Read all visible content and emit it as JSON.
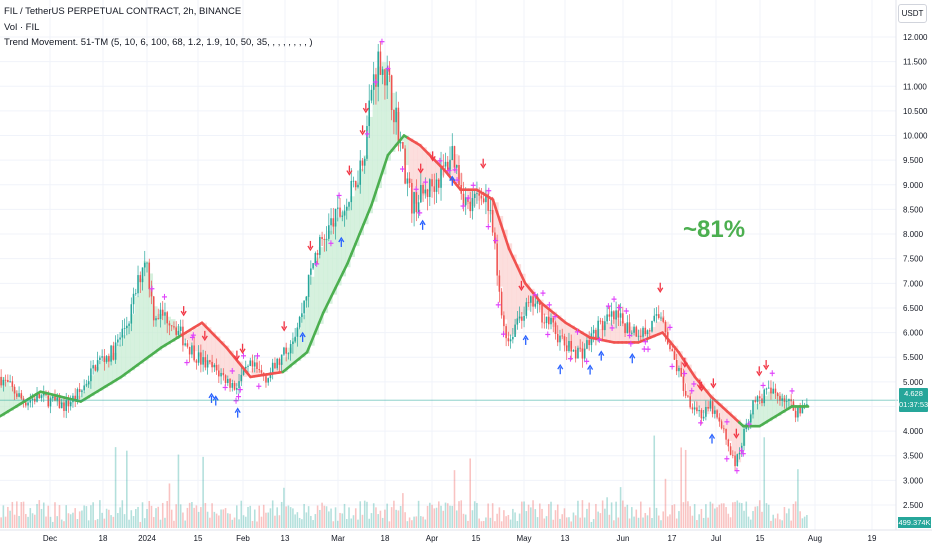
{
  "header": {
    "symbol_line": "FIL / TetherUS PERPETUAL CONTRACT, 2h, BINANCE",
    "volume_line": "Vol · FIL",
    "indicator_line": "Trend Movement. 51-TM (5, 10, 6, 100, 68, 1.2, 1.9, 10, 50, 35, , , , , , , , )"
  },
  "currency_label": "USDT",
  "price_tag": {
    "price": "4.628",
    "countdown": "01:37:53"
  },
  "volume_tag": "499.374K",
  "annotation": "~81%",
  "colors": {
    "up": "#26a69a",
    "down": "#ef5350",
    "trend_up": "#4caf50",
    "trend_down": "#f0524f",
    "fill_up": "#c8ecd3",
    "fill_down": "#fbd3d2",
    "arrow_up": "#2962ff",
    "arrow_down": "#f23645",
    "signal": "#e040fb",
    "annotation": "#4caf50",
    "price_line": "#26a69a"
  },
  "chart_data": {
    "type": "candlestick",
    "title": "FIL / TetherUS PERPETUAL CONTRACT, 2h, BINANCE",
    "ylim": [
      2.25,
      12.1
    ],
    "y_ticks": [
      "12.000",
      "11.500",
      "11.000",
      "10.500",
      "10.000",
      "9.500",
      "9.000",
      "8.500",
      "8.000",
      "7.500",
      "7.000",
      "6.500",
      "6.000",
      "5.500",
      "5.000",
      "4.500",
      "4.000",
      "3.500",
      "3.000",
      "2.500"
    ],
    "x_ticks": [
      "Dec",
      "18",
      "2024",
      "15",
      "Feb",
      "13",
      "Mar",
      "18",
      "Apr",
      "15",
      "May",
      "13",
      "Jun",
      "17",
      "Jul",
      "15",
      "Aug",
      "19"
    ],
    "last_price": 4.628,
    "price_path": [
      [
        0,
        5.1
      ],
      [
        0.03,
        4.6
      ],
      [
        0.05,
        4.7
      ],
      [
        0.08,
        4.5
      ],
      [
        0.1,
        4.8
      ],
      [
        0.12,
        5.4
      ],
      [
        0.14,
        5.6
      ],
      [
        0.16,
        6.3
      ],
      [
        0.18,
        7.6
      ],
      [
        0.19,
        6.4
      ],
      [
        0.21,
        6.3
      ],
      [
        0.23,
        5.8
      ],
      [
        0.25,
        5.4
      ],
      [
        0.27,
        5.2
      ],
      [
        0.29,
        4.9
      ],
      [
        0.31,
        5.3
      ],
      [
        0.33,
        5.1
      ],
      [
        0.35,
        5.5
      ],
      [
        0.37,
        6.2
      ],
      [
        0.39,
        7.6
      ],
      [
        0.41,
        8.2
      ],
      [
        0.43,
        8.6
      ],
      [
        0.45,
        9.6
      ],
      [
        0.46,
        11.0
      ],
      [
        0.47,
        11.6
      ],
      [
        0.48,
        11.1
      ],
      [
        0.49,
        10.4
      ],
      [
        0.5,
        9.4
      ],
      [
        0.51,
        8.6
      ],
      [
        0.53,
        8.9
      ],
      [
        0.55,
        9.3
      ],
      [
        0.56,
        9.7
      ],
      [
        0.57,
        9.0
      ],
      [
        0.58,
        8.5
      ],
      [
        0.6,
        8.9
      ],
      [
        0.61,
        8.0
      ],
      [
        0.62,
        6.4
      ],
      [
        0.63,
        5.8
      ],
      [
        0.64,
        6.3
      ],
      [
        0.66,
        6.6
      ],
      [
        0.68,
        6.2
      ],
      [
        0.7,
        5.7
      ],
      [
        0.72,
        5.6
      ],
      [
        0.74,
        6.1
      ],
      [
        0.76,
        6.3
      ],
      [
        0.78,
        6.1
      ],
      [
        0.8,
        6.0
      ],
      [
        0.82,
        6.4
      ],
      [
        0.83,
        5.6
      ],
      [
        0.84,
        5.2
      ],
      [
        0.85,
        4.7
      ],
      [
        0.87,
        4.3
      ],
      [
        0.88,
        4.5
      ],
      [
        0.9,
        3.8
      ],
      [
        0.91,
        3.3
      ],
      [
        0.92,
        3.9
      ],
      [
        0.93,
        4.5
      ],
      [
        0.95,
        4.8
      ],
      [
        0.97,
        4.7
      ],
      [
        0.985,
        4.4
      ],
      [
        1,
        4.63
      ]
    ],
    "trend_path": [
      [
        0,
        4.3
      ],
      [
        0.05,
        4.8
      ],
      [
        0.1,
        4.6
      ],
      [
        0.15,
        5.1
      ],
      [
        0.2,
        5.7
      ],
      [
        0.25,
        6.2
      ],
      [
        0.28,
        5.7
      ],
      [
        0.31,
        5.1
      ],
      [
        0.35,
        5.2
      ],
      [
        0.38,
        5.6
      ],
      [
        0.4,
        6.4
      ],
      [
        0.43,
        7.4
      ],
      [
        0.46,
        8.6
      ],
      [
        0.48,
        9.6
      ],
      [
        0.5,
        10.0
      ],
      [
        0.52,
        9.8
      ],
      [
        0.55,
        9.3
      ],
      [
        0.57,
        8.9
      ],
      [
        0.59,
        8.9
      ],
      [
        0.61,
        8.7
      ],
      [
        0.63,
        7.7
      ],
      [
        0.65,
        7.0
      ],
      [
        0.67,
        6.6
      ],
      [
        0.7,
        6.2
      ],
      [
        0.73,
        5.9
      ],
      [
        0.76,
        5.8
      ],
      [
        0.79,
        5.8
      ],
      [
        0.82,
        6.0
      ],
      [
        0.84,
        5.6
      ],
      [
        0.86,
        5.1
      ],
      [
        0.88,
        4.7
      ],
      [
        0.9,
        4.4
      ],
      [
        0.92,
        4.1
      ],
      [
        0.94,
        4.1
      ],
      [
        0.96,
        4.3
      ],
      [
        0.98,
        4.5
      ],
      [
        1,
        4.5
      ]
    ],
    "trend_up_segments": [
      [
        0,
        0.22
      ],
      [
        0.35,
        0.5
      ],
      [
        0.915,
        1
      ]
    ],
    "candle_count": 360
  }
}
